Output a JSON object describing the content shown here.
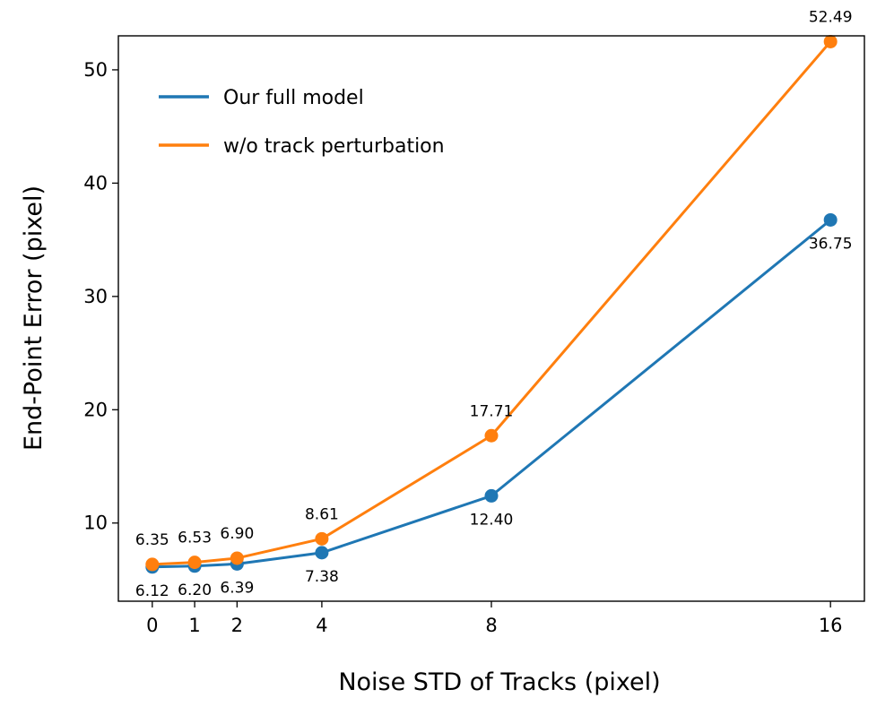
{
  "chart_data": {
    "type": "line",
    "xlabel": "Noise STD of Tracks (pixel)",
    "ylabel": "End-Point Error (pixel)",
    "x": [
      0,
      1,
      2,
      4,
      8,
      16
    ],
    "x_ticks": [
      "0",
      "1",
      "2",
      "4",
      "8",
      "16"
    ],
    "y_ticks": [
      "10",
      "20",
      "30",
      "40",
      "50"
    ],
    "xlim": [
      -0.8,
      16.8
    ],
    "ylim": [
      3.1,
      53.0
    ],
    "legend_position": "upper-left",
    "series": [
      {
        "name": "Our full model",
        "color": "#1f77b4",
        "values": [
          6.12,
          6.2,
          6.39,
          7.38,
          12.4,
          36.75
        ],
        "labels": [
          "6.12",
          "6.20",
          "6.39",
          "7.38",
          "12.40",
          "36.75"
        ],
        "label_side": "below"
      },
      {
        "name": "w/o track perturbation",
        "color": "#ff7f0e",
        "values": [
          6.35,
          6.53,
          6.9,
          8.61,
          17.71,
          52.49
        ],
        "labels": [
          "6.35",
          "6.53",
          "6.90",
          "8.61",
          "17.71",
          "52.49"
        ],
        "label_side": "above"
      }
    ]
  }
}
